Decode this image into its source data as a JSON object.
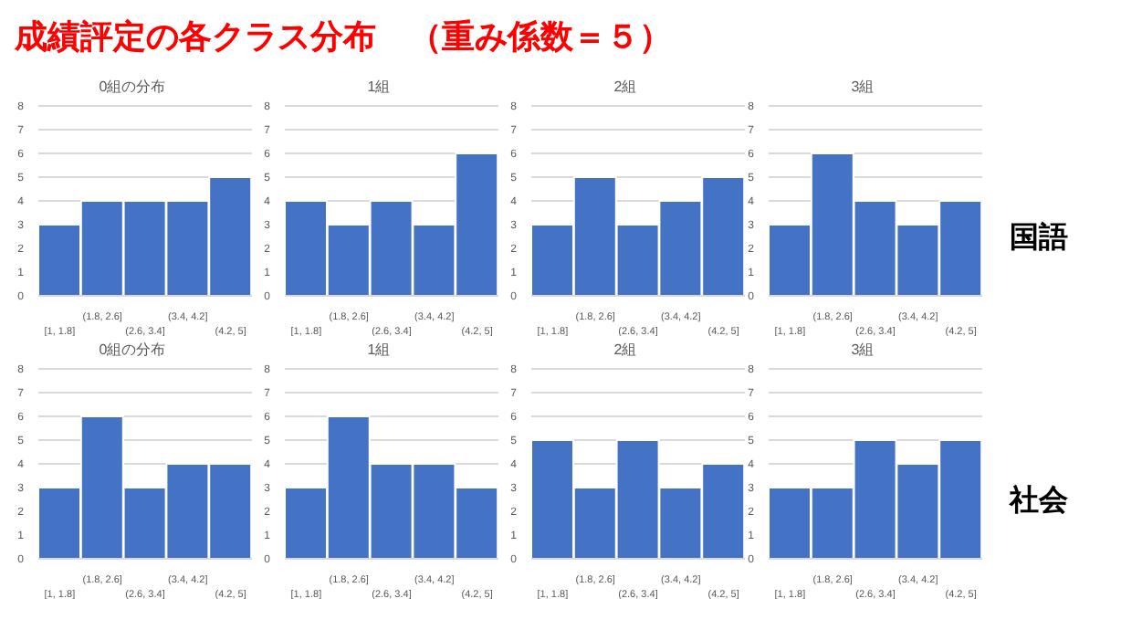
{
  "chart_data": [
    {
      "type": "bar",
      "title": "0組の分布",
      "categories": [
        "[1, 1.8]",
        "(1.8, 2.6]",
        "(2.6, 3.4]",
        "(3.4, 4.2]",
        "(4.2, 5]"
      ],
      "values": [
        3,
        4,
        4,
        4,
        5
      ],
      "color": "#4472c4",
      "ylim": [
        0,
        8
      ],
      "yticks": [
        0,
        1,
        2,
        3,
        4,
        5,
        6,
        7,
        8
      ],
      "grid": "y",
      "annotations": [
        "成績評定の各クラス分布　（重み係数＝５）"
      ]
    },
    {
      "type": "bar",
      "title": "1組",
      "categories": [
        "[1, 1.8]",
        "(1.8, 2.6]",
        "(2.6, 3.4]",
        "(3.4, 4.2]",
        "(4.2, 5]"
      ],
      "values": [
        4,
        3,
        4,
        3,
        6
      ],
      "color": "#4472c4",
      "ylim": [
        0,
        8
      ],
      "yticks": [
        0,
        1,
        2,
        3,
        4,
        5,
        6,
        7,
        8
      ],
      "grid": "y"
    },
    {
      "type": "bar",
      "title": "2組",
      "categories": [
        "[1, 1.8]",
        "(1.8, 2.6]",
        "(2.6, 3.4]",
        "(3.4, 4.2]",
        "(4.2, 5]"
      ],
      "values": [
        3,
        5,
        3,
        4,
        5
      ],
      "color": "#4472c4",
      "ylim": [
        0,
        8
      ],
      "yticks": [
        0,
        1,
        2,
        3,
        4,
        5,
        6,
        7,
        8
      ],
      "grid": "y"
    },
    {
      "type": "bar",
      "title": "3組",
      "categories": [
        "[1, 1.8]",
        "(1.8, 2.6]",
        "(2.6, 3.4]",
        "(3.4, 4.2]",
        "(4.2, 5]"
      ],
      "values": [
        3,
        6,
        4,
        3,
        4
      ],
      "color": "#4472c4",
      "ylim": [
        0,
        8
      ],
      "yticks": [
        0,
        1,
        2,
        3,
        4,
        5,
        6,
        7,
        8
      ],
      "grid": "y",
      "annotations": [
        "国語"
      ]
    },
    {
      "type": "bar",
      "title": "0組の分布",
      "categories": [
        "[1, 1.8]",
        "(1.8, 2.6]",
        "(2.6, 3.4]",
        "(3.4, 4.2]",
        "(4.2, 5]"
      ],
      "values": [
        3,
        6,
        3,
        4,
        4
      ],
      "color": "#4472c4",
      "ylim": [
        0,
        8
      ],
      "yticks": [
        0,
        1,
        2,
        3,
        4,
        5,
        6,
        7,
        8
      ],
      "grid": "y"
    },
    {
      "type": "bar",
      "title": "1組",
      "categories": [
        "[1, 1.8]",
        "(1.8, 2.6]",
        "(2.6, 3.4]",
        "(3.4, 4.2]",
        "(4.2, 5]"
      ],
      "values": [
        3,
        6,
        4,
        4,
        3
      ],
      "color": "#4472c4",
      "ylim": [
        0,
        8
      ],
      "yticks": [
        0,
        1,
        2,
        3,
        4,
        5,
        6,
        7,
        8
      ],
      "grid": "y"
    },
    {
      "type": "bar",
      "title": "2組",
      "categories": [
        "[1, 1.8]",
        "(1.8, 2.6]",
        "(2.6, 3.4]",
        "(3.4, 4.2]",
        "(4.2, 5]"
      ],
      "values": [
        5,
        3,
        5,
        3,
        4
      ],
      "color": "#4472c4",
      "ylim": [
        0,
        8
      ],
      "yticks": [
        0,
        1,
        2,
        3,
        4,
        5,
        6,
        7,
        8
      ],
      "grid": "y"
    },
    {
      "type": "bar",
      "title": "3組",
      "categories": [
        "[1, 1.8]",
        "(1.8, 2.6]",
        "(2.6, 3.4]",
        "(3.4, 4.2]",
        "(4.2, 5]"
      ],
      "values": [
        3,
        3,
        5,
        4,
        5
      ],
      "color": "#4472c4",
      "ylim": [
        0,
        8
      ],
      "yticks": [
        0,
        1,
        2,
        3,
        4,
        5,
        6,
        7,
        8
      ],
      "grid": "y",
      "annotations": [
        "社会"
      ]
    }
  ]
}
